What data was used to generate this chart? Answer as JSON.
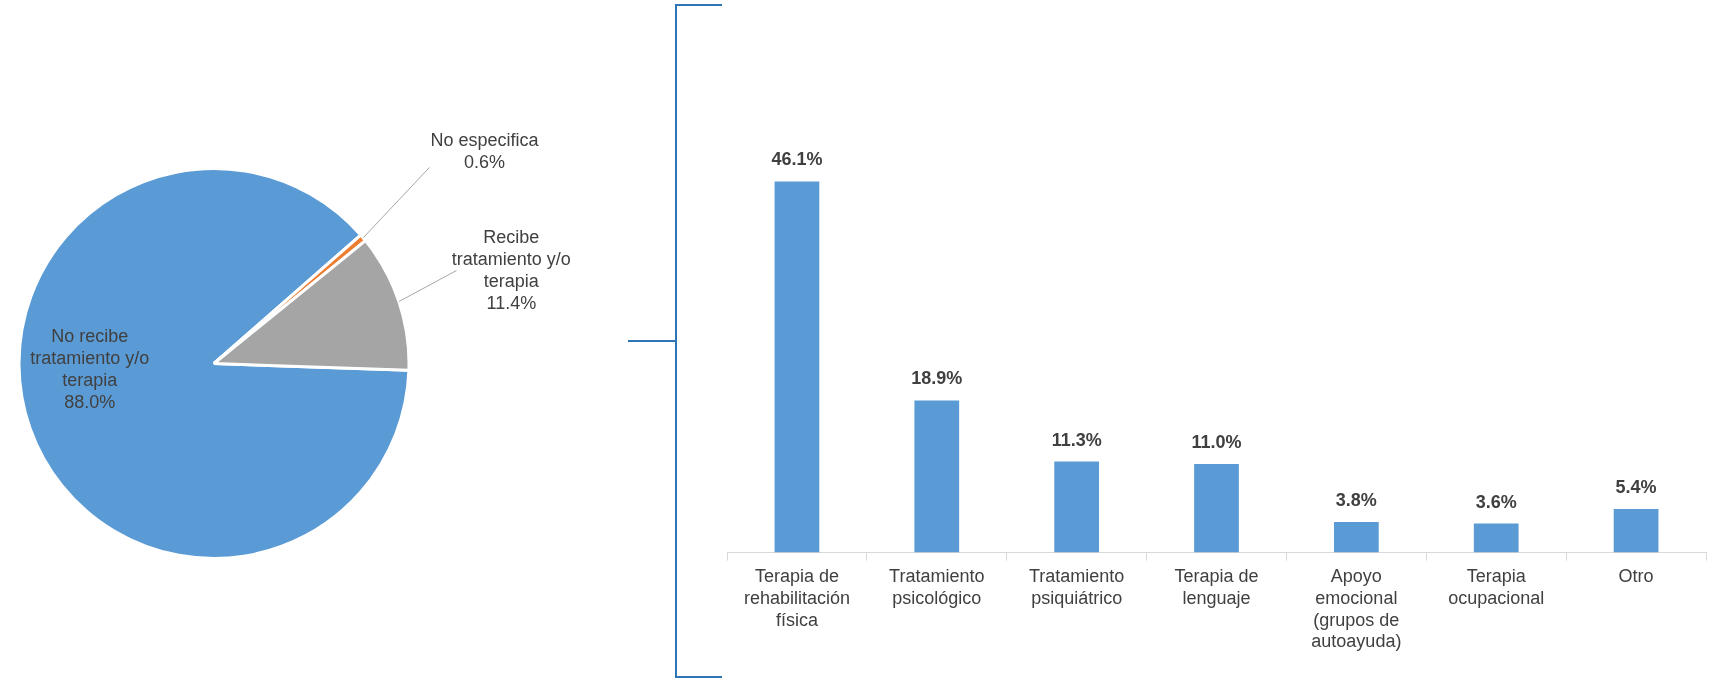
{
  "chart_data": [
    {
      "type": "pie",
      "categories": [
        "No recibe tratamiento y/o terapia",
        "No especifica",
        "Recibe tratamiento y/o terapia"
      ],
      "values": [
        88.0,
        0.6,
        11.4
      ],
      "colors": [
        "#5b9bd5",
        "#ed7d31",
        "#a5a5a5"
      ],
      "value_labels": [
        "88.0%",
        "0.6%",
        "11.4%"
      ],
      "legend": false
    },
    {
      "type": "bar",
      "categories": [
        "Terapia de rehabilitación física",
        "Tratamiento psicológico",
        "Tratamiento psiquiátrico",
        "Terapia de lenguaje",
        "Apoyo emocional (grupos de autoayuda)",
        "Terapia ocupacional",
        "Otro"
      ],
      "values": [
        46.1,
        18.9,
        11.3,
        11.0,
        3.8,
        3.6,
        5.4
      ],
      "color": "#5b9bd5",
      "value_labels": [
        "46.1%",
        "18.9%",
        "11.3%",
        "11.0%",
        "3.8%",
        "3.6%",
        "5.4%"
      ],
      "grid": false,
      "legend": false
    }
  ]
}
